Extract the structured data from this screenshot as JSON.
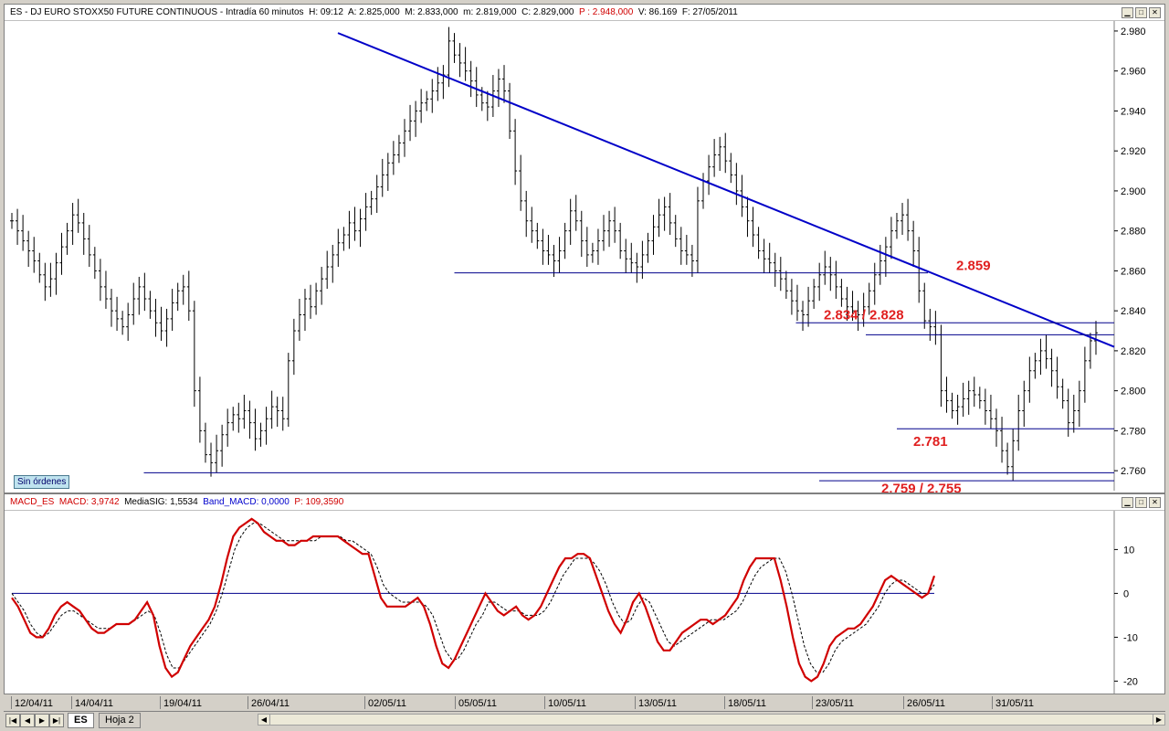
{
  "window": {
    "title_parts": {
      "symbol": "ES - DJ EURO STOXX50 FUTURE CONTINUOUS - Intradía 60 minutos",
      "h": "H: 09:12",
      "a": "A: 2.825,000",
      "m_high": "M: 2.833,000",
      "m_low": "m: 2.819,000",
      "c": "C: 2.829,000",
      "p": "P : 2.948,000",
      "v": "V: 86.169",
      "f": "F: 27/05/2011"
    },
    "status_badge": "Sin órdenes"
  },
  "macd_header": {
    "name": "MACD_ES",
    "macd": "MACD: 3,9742",
    "signal": "MediaSIG: 1,5534",
    "band": "Band_MACD: 0,0000",
    "p": "P: 109,3590"
  },
  "tabs": {
    "active": "ES",
    "inactive": "Hoja 2"
  },
  "colors": {
    "candles": "#000000",
    "trendline": "#0000c8",
    "support_lines": "#00008b",
    "annotation_text": "#e02020",
    "macd_line": "#d00000",
    "signal_line": "#000000",
    "zero_line": "#00008b"
  },
  "chart_data": [
    {
      "type": "line",
      "chart": "price",
      "ylim": [
        2750,
        2985
      ],
      "yticks": [
        2760,
        2780,
        2800,
        2820,
        2840,
        2860,
        2880,
        2900,
        2920,
        2940,
        2960,
        2980
      ],
      "ytick_labels": [
        "2.760",
        "2.780",
        "2.800",
        "2.820",
        "2.840",
        "2.860",
        "2.880",
        "2.900",
        "2.920",
        "2.940",
        "2.960",
        "2.980"
      ],
      "x_labels": [
        "12/04/11",
        "14/04/11",
        "19/04/11",
        "26/04/11",
        "02/05/11",
        "05/05/11",
        "10/05/11",
        "13/05/11",
        "18/05/11",
        "23/05/11",
        "26/05/11",
        "31/05/11"
      ],
      "x_label_bars": [
        0,
        10,
        20,
        30,
        40,
        50,
        60,
        70,
        80,
        90,
        100,
        110
      ],
      "bar_count": 124,
      "series": [
        {
          "closes": [
            2885,
            2880,
            2875,
            2870,
            2865,
            2858,
            2852,
            2856,
            2864,
            2872,
            2880,
            2888,
            2884,
            2876,
            2868,
            2860,
            2852,
            2846,
            2840,
            2836,
            2832,
            2838,
            2846,
            2852,
            2846,
            2840,
            2834,
            2830,
            2836,
            2844,
            2850,
            2852,
            2840,
            2800,
            2780,
            2768,
            2764,
            2770,
            2778,
            2784,
            2788,
            2786,
            2790,
            2784,
            2776,
            2780,
            2786,
            2792,
            2790,
            2786,
            2815,
            2830,
            2838,
            2846,
            2842,
            2850,
            2856,
            2862,
            2868,
            2874,
            2878,
            2884,
            2880,
            2886,
            2892,
            2896,
            2902,
            2908,
            2914,
            2918,
            2924,
            2930,
            2935,
            2940,
            2944,
            2946,
            2950,
            2954,
            2958,
            2975,
            2968,
            2964,
            2960,
            2955,
            2948,
            2944,
            2942,
            2950,
            2956,
            2950,
            2930,
            2910,
            2895,
            2885,
            2880,
            2875,
            2870,
            2868,
            2865,
            2870,
            2880,
            2890,
            2885,
            2875,
            2868,
            2870,
            2875,
            2880,
            2885,
            2880,
            2870,
            2866,
            2864,
            2862,
            2868,
            2875,
            2882,
            2888,
            2892,
            2884,
            2876,
            2870,
            2868,
            2865,
            2895,
            2905,
            2912,
            2918,
            2922,
            2915,
            2908,
            2900,
            2892,
            2885,
            2878,
            2870,
            2866,
            2864,
            2860,
            2856,
            2850,
            2845,
            2840,
            2838,
            2845,
            2852,
            2858,
            2862,
            2858,
            2852,
            2846,
            2842,
            2840,
            2838,
            2842,
            2850,
            2858,
            2865,
            2872,
            2880,
            2885,
            2888,
            2880,
            2870,
            2850,
            2835,
            2832,
            2828,
            2800,
            2795,
            2790,
            2792,
            2796,
            2800,
            2798,
            2795,
            2790,
            2786,
            2780,
            2770,
            2762,
            2775,
            2790,
            2800,
            2810,
            2815,
            2820,
            2816,
            2810,
            2802,
            2795,
            2784,
            2790,
            2800,
            2815,
            2825,
            2829
          ]
        },
        {
          "name": "trendline",
          "points": [
            [
              42,
              2979
            ],
            [
              142,
              2822
            ]
          ]
        }
      ],
      "levels": [
        {
          "value": 2859,
          "label": "2.859",
          "from_bar": 57,
          "to_bar": 118
        },
        {
          "value": 2834,
          "label": "2.834 / 2.828",
          "from_bar": 101,
          "to_bar": 142
        },
        {
          "value": 2828,
          "label": "",
          "from_bar": 110,
          "to_bar": 142
        },
        {
          "value": 2781,
          "label": "2.781",
          "from_bar": 114,
          "to_bar": 142
        },
        {
          "value": 2759,
          "label": "2.759 / 2.755",
          "from_bar": 17,
          "to_bar": 142
        },
        {
          "value": 2755,
          "label": "",
          "from_bar": 104,
          "to_bar": 142
        }
      ]
    },
    {
      "type": "line",
      "chart": "macd",
      "ylim": [
        -22,
        18
      ],
      "yticks": [
        10,
        0,
        -10,
        -20
      ],
      "ytick_labels": [
        "10",
        "0",
        "-10",
        "-20"
      ],
      "series": [
        {
          "name": "MACD",
          "values": [
            -1,
            -3,
            -6,
            -9,
            -10,
            -10,
            -8,
            -5,
            -3,
            -2,
            -3,
            -4,
            -6,
            -8,
            -9,
            -9,
            -8,
            -7,
            -7,
            -7,
            -6,
            -4,
            -2,
            -5,
            -12,
            -17,
            -19,
            -18,
            -15,
            -12,
            -10,
            -8,
            -6,
            -3,
            2,
            8,
            13,
            15,
            16,
            17,
            16,
            14,
            13,
            12,
            12,
            11,
            11,
            12,
            12,
            13,
            13,
            13,
            13,
            13,
            12,
            11,
            10,
            9,
            9,
            4,
            -1,
            -3,
            -3,
            -3,
            -3,
            -2,
            -1,
            -3,
            -7,
            -12,
            -16,
            -17,
            -15,
            -12,
            -9,
            -6,
            -3,
            0,
            -2,
            -4,
            -5,
            -4,
            -3,
            -5,
            -6,
            -5,
            -3,
            0,
            3,
            6,
            8,
            8,
            9,
            9,
            8,
            4,
            0,
            -4,
            -7,
            -9,
            -6,
            -2,
            0,
            -3,
            -7,
            -11,
            -13,
            -13,
            -11,
            -9,
            -8,
            -7,
            -6,
            -6,
            -7,
            -6,
            -5,
            -3,
            -1,
            3,
            6,
            8,
            8,
            8,
            8,
            3,
            -3,
            -10,
            -16,
            -19,
            -20,
            -19,
            -16,
            -12,
            -10,
            -9,
            -8,
            -8,
            -7,
            -5,
            -3,
            0,
            3,
            4,
            3,
            2,
            1,
            0,
            -1,
            0,
            4
          ]
        },
        {
          "name": "MediaSIG",
          "values": [
            0,
            -2,
            -4,
            -7,
            -9,
            -10,
            -9,
            -7,
            -5,
            -4,
            -4,
            -5,
            -6,
            -7,
            -8,
            -8,
            -8,
            -7,
            -7,
            -7,
            -6,
            -5,
            -4,
            -5,
            -9,
            -14,
            -17,
            -17,
            -15,
            -13,
            -11,
            -9,
            -7,
            -4,
            0,
            5,
            10,
            13,
            15,
            16,
            16,
            15,
            14,
            13,
            12,
            12,
            12,
            12,
            12,
            12,
            13,
            13,
            13,
            13,
            12,
            12,
            11,
            10,
            9,
            6,
            2,
            0,
            -1,
            -2,
            -2,
            -2,
            -2,
            -3,
            -5,
            -9,
            -13,
            -15,
            -15,
            -13,
            -10,
            -7,
            -5,
            -2,
            -2,
            -3,
            -4,
            -4,
            -4,
            -5,
            -5,
            -5,
            -4,
            -2,
            1,
            4,
            6,
            8,
            8,
            8,
            7,
            5,
            2,
            -2,
            -5,
            -7,
            -6,
            -3,
            -1,
            -2,
            -5,
            -8,
            -11,
            -12,
            -11,
            -10,
            -9,
            -8,
            -7,
            -6,
            -6,
            -6,
            -5,
            -4,
            -2,
            1,
            4,
            6,
            7,
            8,
            8,
            5,
            0,
            -6,
            -12,
            -16,
            -18,
            -18,
            -16,
            -13,
            -11,
            -10,
            -9,
            -8,
            -7,
            -5,
            -3,
            0,
            2,
            3,
            3,
            2,
            1,
            0,
            0,
            2
          ]
        }
      ]
    }
  ]
}
